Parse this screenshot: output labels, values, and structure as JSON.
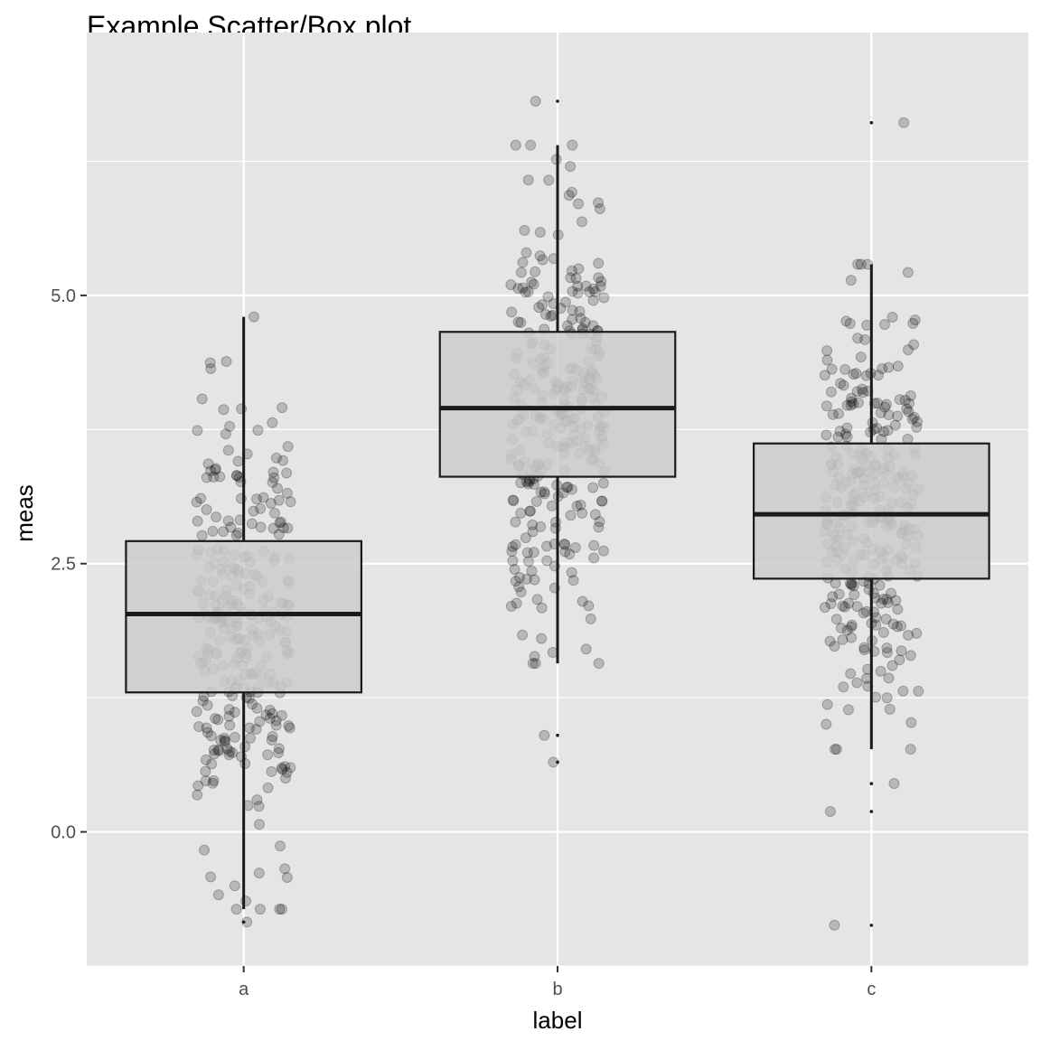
{
  "chart_data": {
    "type": "box",
    "title": "Example Scatter/Box plot",
    "xlabel": "label",
    "ylabel": "meas",
    "categories": [
      "a",
      "b",
      "c"
    ],
    "ylim": [
      -1.25,
      7.45
    ],
    "yticks": [
      0.0,
      2.5,
      5.0
    ],
    "ytick_labels": [
      "0.0",
      "2.5",
      "5.0"
    ],
    "grid": true,
    "panel_background": "#e5e5e5",
    "grid_color": "#ffffff",
    "box_fill": "#cccccc",
    "box_line": "#1a1a1a",
    "point_color": "#000000",
    "point_alpha": 0.2,
    "boxes": [
      {
        "category": "a",
        "lower_whisker": -0.72,
        "q1": 1.3,
        "median": 2.03,
        "q3": 2.71,
        "upper_whisker": 4.8,
        "outliers": [
          -0.84
        ]
      },
      {
        "category": "b",
        "lower_whisker": 1.57,
        "q1": 3.31,
        "median": 3.95,
        "q3": 4.66,
        "upper_whisker": 6.4,
        "outliers": [
          6.81,
          0.9,
          0.65
        ]
      },
      {
        "category": "c",
        "lower_whisker": 0.77,
        "q1": 2.36,
        "median": 2.96,
        "q3": 3.62,
        "upper_whisker": 5.29,
        "outliers": [
          6.61,
          0.45,
          0.19,
          -0.87
        ]
      }
    ],
    "point_groups": [
      {
        "category": "a",
        "n": 300,
        "mean": 2.0,
        "sd": 1.0
      },
      {
        "category": "b",
        "n": 300,
        "mean": 4.0,
        "sd": 1.0
      },
      {
        "category": "c",
        "n": 300,
        "mean": 3.0,
        "sd": 1.0
      }
    ]
  }
}
